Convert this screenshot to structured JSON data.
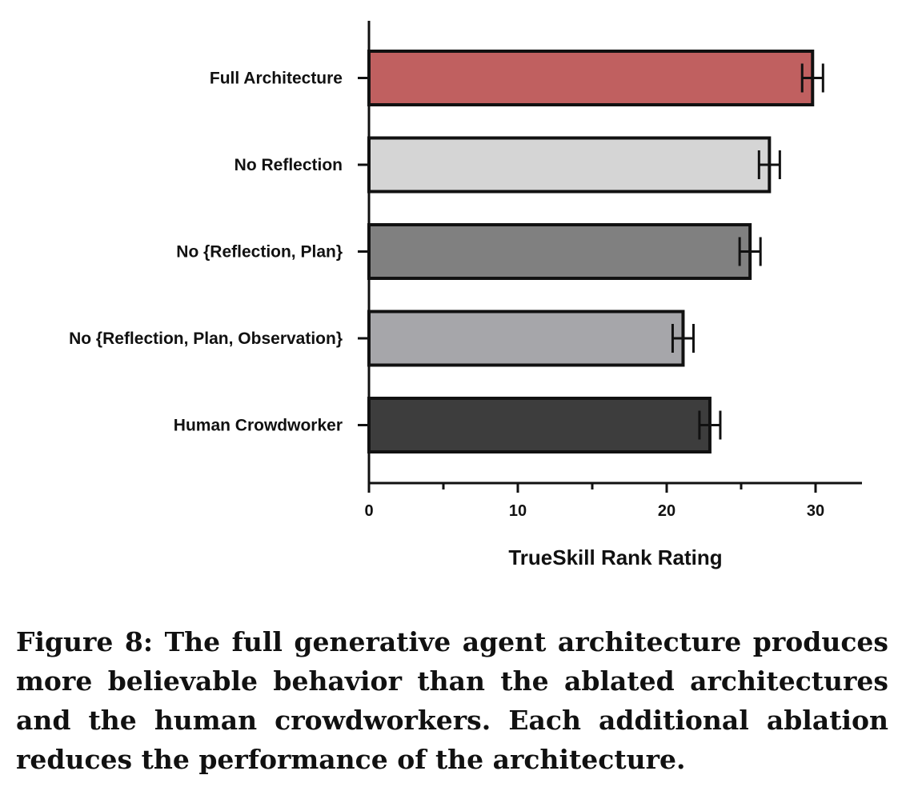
{
  "chart_data": {
    "type": "bar",
    "orientation": "horizontal",
    "categories": [
      "Full Architecture",
      "No Reflection",
      "No {Reflection, Plan}",
      "No {Reflection, Plan, Observation}",
      "Human Crowdworker"
    ],
    "values": [
      29.8,
      26.9,
      25.6,
      21.1,
      22.9
    ],
    "error": [
      0.7,
      0.7,
      0.7,
      0.7,
      0.7
    ],
    "colors": [
      "#c06060",
      "#d5d5d5",
      "#808080",
      "#a6a6aa",
      "#3d3d3d"
    ],
    "xlabel": "TrueSkill Rank Rating",
    "xlim": [
      0,
      33
    ],
    "xticks": [
      0,
      10,
      20,
      30
    ],
    "grid": false
  },
  "caption": "Figure 8: The full generative agent architecture produces more believable behavior than the ablated architectures and the human crowdworkers. Each additional ablation reduces the performance of the architecture."
}
